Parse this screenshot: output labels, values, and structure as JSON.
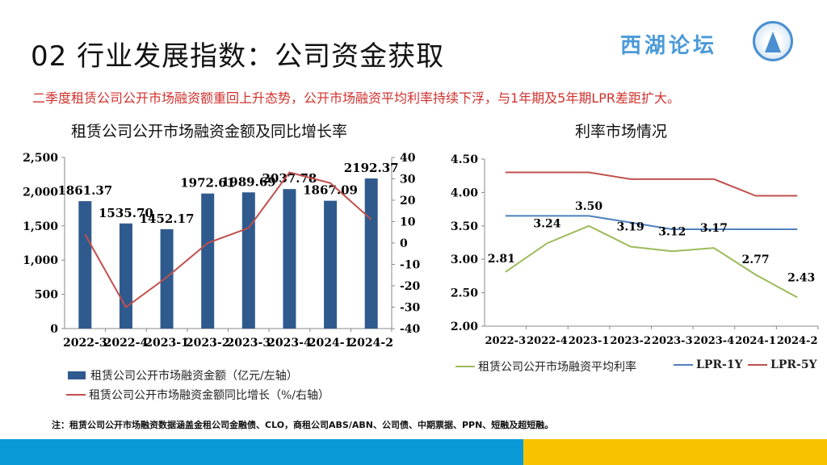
{
  "header": {
    "title": "02 行业发展指数：公司资金获取",
    "subtitle": "二季度租赁公司公开市场融资额重回上升态势，公开市场融资平均利率持续下浮，与1年期及5年期LPR差距扩大。",
    "logo_text": "西湖论坛"
  },
  "footer": {
    "note": "注：租赁公司公开市场融资数据涵盖金租公司金融债、CLO，商租公司ABS/ABN、公司债、中期票据、PPN、短融及超短融。"
  },
  "colors": {
    "bar": "#2f5a8e",
    "growth": "#c0504d",
    "avg_rate": "#9bbb59",
    "lpr1y": "#4f81bd",
    "lpr5y": "#c0504d",
    "subtitle": "#d0312d",
    "band_blue": "#0a9ad8",
    "band_yellow": "#f7c300"
  },
  "chart_data": [
    {
      "type": "bar",
      "title": "租赁公司公开市场融资金额及同比增长率",
      "categories": [
        "2022-3",
        "2022-4",
        "2023-1",
        "2023-2",
        "2023-3",
        "2023-4",
        "2024-1",
        "2024-2"
      ],
      "series": [
        {
          "name": "租赁公司公开市场融资金额（亿元/左轴）",
          "type": "bar",
          "axis": "left",
          "values": [
            1861.37,
            1535.7,
            1452.17,
            1972.61,
            1989.69,
            2037.78,
            1867.09,
            2192.37
          ],
          "labels": [
            "1861.37",
            "1535.70",
            "1452.17",
            "1972.61",
            "1989.69",
            "2037.78",
            "1867.09",
            "2192.37"
          ]
        },
        {
          "name": "租赁公司公开市场融资金额同比增长（%/右轴）",
          "type": "line",
          "axis": "right",
          "values": [
            4,
            -30,
            -16,
            0,
            7,
            33,
            28,
            11
          ]
        }
      ],
      "ylim_left": [
        0,
        2500
      ],
      "yticks_left": [
        "0",
        "500",
        "1,000",
        "1,500",
        "2,000",
        "2,500"
      ],
      "ylim_right": [
        -40,
        40
      ],
      "yticks_right": [
        "-40",
        "-30",
        "-20",
        "-10",
        "0",
        "10",
        "20",
        "30",
        "40"
      ],
      "grid": false,
      "legend": "bottom"
    },
    {
      "type": "line",
      "title": "利率市场情况",
      "categories": [
        "2022-3",
        "2022-4",
        "2023-1",
        "2023-2",
        "2023-3",
        "2023-4",
        "2024-1",
        "2024-2"
      ],
      "series": [
        {
          "name": "租赁公司公开市场融资平均利率",
          "values": [
            2.81,
            3.24,
            3.5,
            3.19,
            3.12,
            3.17,
            2.77,
            2.43
          ],
          "labels": [
            "2.81",
            "3.24",
            "3.50",
            "3.19",
            "3.12",
            "3.17",
            "2.77",
            "2.43"
          ]
        },
        {
          "name": "LPR-1Y",
          "values": [
            3.65,
            3.65,
            3.65,
            3.55,
            3.45,
            3.45,
            3.45,
            3.45
          ]
        },
        {
          "name": "LPR-5Y",
          "values": [
            4.3,
            4.3,
            4.3,
            4.2,
            4.2,
            4.2,
            3.95,
            3.95
          ]
        }
      ],
      "ylim": [
        2.0,
        4.5
      ],
      "yticks": [
        "2.00",
        "2.50",
        "3.00",
        "3.50",
        "4.00",
        "4.50"
      ],
      "grid": false,
      "legend": "bottom"
    }
  ]
}
